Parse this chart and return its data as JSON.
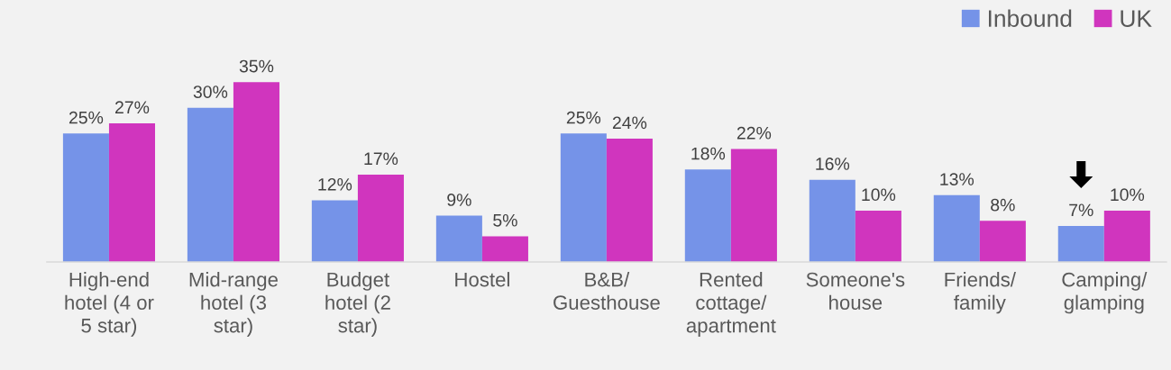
{
  "chart_data": {
    "type": "bar",
    "categories": [
      "High-end\nhotel (4 or\n5 star)",
      "Mid-range\nhotel (3\nstar)",
      "Budget\nhotel (2\nstar)",
      "Hostel",
      "B&B/\nGuesthouse",
      "Rented\ncottage/\napartment",
      "Someone's\nhouse",
      "Friends/\nfamily",
      "Camping/\nglamping"
    ],
    "series": [
      {
        "name": "Inbound",
        "color": "#7593e8",
        "values": [
          25,
          30,
          12,
          9,
          25,
          18,
          16,
          13,
          7
        ],
        "value_labels": [
          "25%",
          "30%",
          "12%",
          "9%",
          "25%",
          "18%",
          "16%",
          "13%",
          "7%"
        ]
      },
      {
        "name": "UK",
        "color": "#d035be",
        "values": [
          27,
          35,
          17,
          5,
          24,
          22,
          10,
          8,
          10
        ],
        "value_labels": [
          "27%",
          "35%",
          "17%",
          "5%",
          "24%",
          "22%",
          "10%",
          "8%",
          "10%"
        ]
      }
    ],
    "legend": "top right",
    "grid": false,
    "tick_labels": "x"
  }
}
